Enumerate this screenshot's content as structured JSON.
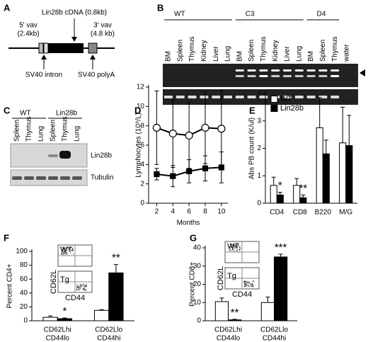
{
  "panel_labels": [
    "A",
    "B",
    "C",
    "D",
    "E",
    "F",
    "G"
  ],
  "construct": {
    "cdna": "Lin28b cDNA (0.8kb)",
    "vav5": [
      "5' vav",
      "(2.4kb)"
    ],
    "vav3": [
      "3' vav",
      "(4.8 kb)"
    ],
    "intron": "SV40 intron",
    "polya": "SV40 polyA"
  },
  "gel_b": {
    "groups": [
      "WT",
      "C3",
      "D4"
    ],
    "lanes": [
      "BM",
      "Spleen",
      "Thymus",
      "Kidney",
      "Liver",
      "Lung",
      "BM",
      "Spleen",
      "Thymus",
      "Kidney",
      "Liver",
      "Lung",
      "BM",
      "Spleen",
      "Thymus",
      "water"
    ]
  },
  "gel_c": {
    "groups": [
      "WT",
      "Lin28b"
    ],
    "lanes": [
      "Spleen",
      "Thymus",
      "Lung",
      "Spleen",
      "Thymus",
      "Lung"
    ],
    "rows": [
      "Lin28b",
      "Tubulin"
    ]
  },
  "chart_data": [
    {
      "type": "line",
      "x_label": "Months",
      "y_label": "Lymphocytes (10⁹/L)",
      "x": [
        2,
        4,
        6,
        8,
        10
      ],
      "xlim": [
        1,
        10.8
      ],
      "xticks": [
        2,
        4,
        6,
        8,
        10
      ],
      "ylim": [
        0,
        12
      ],
      "yticks": [
        0,
        2,
        4,
        6,
        8,
        10,
        12
      ],
      "series": [
        {
          "name": "WT",
          "color": "#ffffff",
          "marker": "circle",
          "values": [
            7.8,
            7.2,
            7.0,
            7.8,
            7.7
          ],
          "errors": [
            3.8,
            3.5,
            3.4,
            3.7,
            3.9
          ]
        },
        {
          "name": "Lin28b",
          "color": "#000000",
          "marker": "square",
          "values": [
            3.0,
            2.8,
            3.3,
            3.6,
            3.7
          ],
          "errors": [
            0.6,
            1.1,
            1.2,
            1.3,
            1.6
          ]
        }
      ]
    },
    {
      "type": "bar",
      "y_label": "Abs PB count (K/ul)",
      "legend": "top-left",
      "categories": [
        "CD4",
        "CD8",
        "B220",
        "M/G"
      ],
      "ylim": [
        0,
        4
      ],
      "yticks": [
        0,
        1,
        2,
        3,
        4
      ],
      "series": [
        {
          "name": "WT",
          "color": "#ffffff",
          "values": [
            0.65,
            0.65,
            2.75,
            2.2
          ],
          "errors": [
            0.3,
            0.25,
            1.1,
            1.3
          ]
        },
        {
          "name": "Lin28b",
          "color": "#000000",
          "values": [
            0.3,
            0.2,
            1.8,
            2.1
          ],
          "errors": [
            0.1,
            0.1,
            0.5,
            1.1
          ]
        }
      ],
      "annotations": [
        "*",
        "**",
        null,
        null
      ]
    },
    {
      "type": "bar",
      "y_label": "Percent CD4+",
      "categories": [
        [
          "CD62Lhi",
          "CD44lo"
        ],
        [
          "CD62Llo",
          "CD44hi"
        ]
      ],
      "ylim": [
        0,
        100
      ],
      "yticks": [
        0,
        20,
        40,
        60,
        80,
        100
      ],
      "series": [
        {
          "color": "#ffffff",
          "values": [
            5,
            15
          ],
          "errors": [
            2,
            1
          ]
        },
        {
          "color": "#000000",
          "values": [
            3,
            69
          ],
          "errors": [
            1,
            12
          ]
        }
      ],
      "annotations": [
        "*",
        "**"
      ],
      "inset_labels": [
        "WT",
        "Tg",
        "CD62L",
        "CD44"
      ]
    },
    {
      "type": "bar",
      "y_label": "Percent CD8+",
      "categories": [
        [
          "CD62Lhi",
          "CD44lo"
        ],
        [
          "CD62Llo",
          "CD44hi"
        ]
      ],
      "ylim": [
        0,
        40
      ],
      "yticks": [
        0,
        10,
        20,
        30,
        40
      ],
      "series": [
        {
          "color": "#ffffff",
          "values": [
            10.5,
            10
          ],
          "errors": [
            2,
            3
          ]
        },
        {
          "color": "#000000",
          "values": [
            0.5,
            35
          ],
          "errors": [
            0.3,
            1.5
          ]
        }
      ],
      "annotations": [
        "**",
        "***"
      ],
      "inset_labels": [
        "WT",
        "Tg",
        "CD62L",
        "CD44"
      ]
    }
  ]
}
